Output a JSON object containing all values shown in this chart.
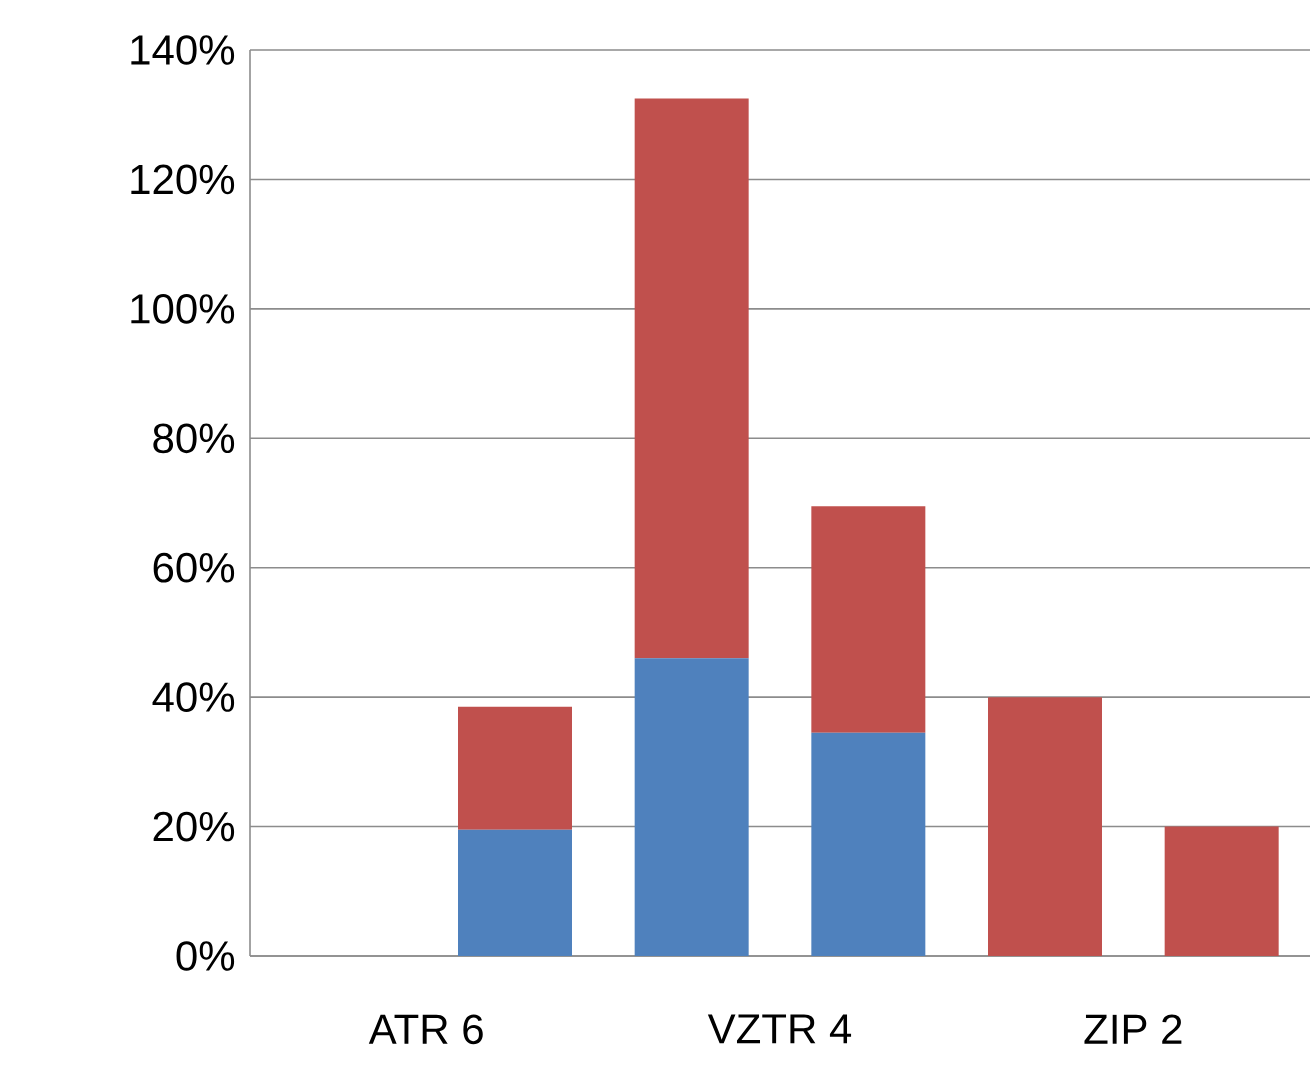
{
  "chart_data": {
    "type": "bar",
    "stacked": true,
    "categories": [
      "ATR 6",
      null,
      "VZTR 4",
      null,
      "ZIP 2",
      null
    ],
    "series": [
      {
        "color": "#4f81bd",
        "values": [
          null,
          19.5,
          46,
          34.5,
          null,
          null
        ]
      },
      {
        "color": "#c0504d",
        "values": [
          null,
          19,
          86.5,
          35,
          40,
          20
        ]
      }
    ],
    "ylim": [
      0,
      140
    ],
    "yticks": [
      {
        "value": 0,
        "label": "0%"
      },
      {
        "value": 20,
        "label": "20%"
      },
      {
        "value": 40,
        "label": "40%"
      },
      {
        "value": 60,
        "label": "60%"
      },
      {
        "value": 80,
        "label": "80%"
      },
      {
        "value": 100,
        "label": "100%"
      },
      {
        "value": 120,
        "label": "120%"
      },
      {
        "value": 140,
        "label": "140%"
      }
    ],
    "grid": "y"
  }
}
